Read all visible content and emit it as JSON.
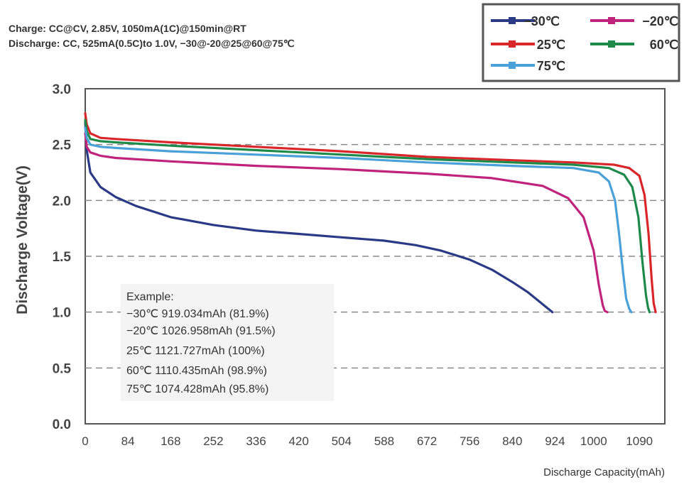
{
  "header": {
    "charge_text": "Charge: CC@CV, 2.85V, 1050mA(1C)@150min@RT",
    "discharge_text": "Discharge: CC, 525mA(0.5C)to 1.0V, −30@-20@25@60@75℃"
  },
  "chart_data": {
    "type": "line",
    "title": "",
    "xlabel": "Discharge Capacity(mAh)",
    "ylabel": "Discharge Voltage(V)",
    "xlim": [
      0,
      1140
    ],
    "ylim": [
      0.0,
      3.0
    ],
    "x_ticks": [
      0,
      84,
      168,
      252,
      336,
      420,
      504,
      588,
      672,
      756,
      840,
      924,
      1000,
      1090
    ],
    "y_ticks": [
      0.0,
      0.5,
      1.0,
      1.5,
      2.0,
      2.5,
      3.0
    ],
    "y_tick_labels": [
      "0.0",
      "0.5",
      "1.0",
      "1.5",
      "2.0",
      "2.5",
      "3.0"
    ],
    "grid": "dashed horizontal at 0.5, 1.0, 1.5, 2.0, 2.5",
    "legend_placement": "top-right",
    "series": [
      {
        "name": "−30℃",
        "color": "#2b3a86",
        "x": [
          0,
          3,
          10,
          30,
          60,
          100,
          168,
          252,
          336,
          420,
          504,
          588,
          650,
          700,
          756,
          800,
          840,
          870,
          900,
          919
        ],
        "y": [
          2.7,
          2.45,
          2.25,
          2.12,
          2.03,
          1.95,
          1.85,
          1.78,
          1.73,
          1.7,
          1.67,
          1.64,
          1.6,
          1.55,
          1.47,
          1.38,
          1.27,
          1.18,
          1.07,
          1.0
        ]
      },
      {
        "name": "−20℃",
        "color": "#c0237b",
        "x": [
          0,
          3,
          10,
          30,
          60,
          168,
          336,
          504,
          672,
          800,
          900,
          950,
          980,
          1000,
          1010,
          1018,
          1022,
          1027
        ],
        "y": [
          2.6,
          2.48,
          2.43,
          2.4,
          2.38,
          2.35,
          2.31,
          2.28,
          2.24,
          2.2,
          2.13,
          2.02,
          1.85,
          1.55,
          1.25,
          1.06,
          1.01,
          1.0
        ]
      },
      {
        "name": "25℃",
        "color": "#d9262a",
        "x": [
          0,
          3,
          10,
          30,
          60,
          168,
          336,
          504,
          672,
          840,
          960,
          1040,
          1070,
          1090,
          1100,
          1108,
          1114,
          1118,
          1122
        ],
        "y": [
          2.78,
          2.68,
          2.6,
          2.56,
          2.55,
          2.52,
          2.48,
          2.44,
          2.39,
          2.36,
          2.34,
          2.32,
          2.29,
          2.22,
          2.05,
          1.7,
          1.3,
          1.08,
          1.0
        ]
      },
      {
        "name": "60℃",
        "color": "#1e8a4a",
        "x": [
          0,
          3,
          10,
          30,
          60,
          168,
          336,
          504,
          672,
          840,
          960,
          1030,
          1060,
          1076,
          1088,
          1096,
          1103,
          1107,
          1110
        ],
        "y": [
          2.72,
          2.62,
          2.55,
          2.53,
          2.52,
          2.49,
          2.45,
          2.41,
          2.37,
          2.34,
          2.32,
          2.29,
          2.23,
          2.12,
          1.85,
          1.45,
          1.15,
          1.04,
          1.0
        ]
      },
      {
        "name": "75℃",
        "color": "#4aa0d8",
        "x": [
          0,
          3,
          10,
          30,
          60,
          168,
          336,
          504,
          672,
          840,
          960,
          1010,
          1030,
          1042,
          1050,
          1058,
          1064,
          1070,
          1074
        ],
        "y": [
          2.65,
          2.56,
          2.5,
          2.48,
          2.47,
          2.44,
          2.41,
          2.38,
          2.34,
          2.31,
          2.29,
          2.25,
          2.17,
          2.0,
          1.7,
          1.35,
          1.12,
          1.03,
          1.0
        ]
      }
    ],
    "annotation": {
      "lines": [
        "Example:",
        "−30℃ 919.034mAh (81.9%)",
        "−20℃ 1026.958mAh (91.5%)",
        "25℃ 1121.727mAh (100%)",
        "60℃ 1110.435mAh (98.9%)",
        "75℃ 1074.428mAh (95.8%)"
      ]
    }
  }
}
